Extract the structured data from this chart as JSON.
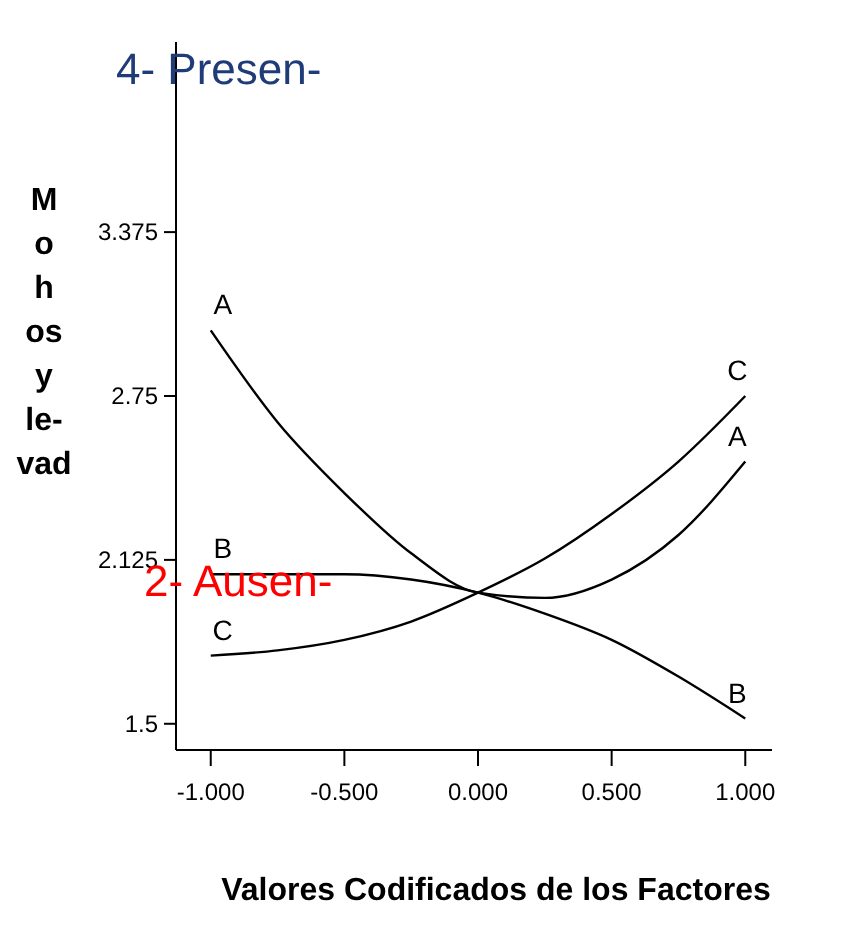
{
  "chart_data": {
    "type": "line",
    "xlabel": "Valores Codificados de los Factores",
    "ylabel": "M\no\nh\nos\ny\nle-\nvad",
    "annotations": [
      "4- Presen-",
      "2- Ausen-"
    ],
    "xlim": [
      -1.13,
      1.1
    ],
    "ylim": [
      1.4,
      4.1
    ],
    "xticks": [
      {
        "value": -1,
        "label": "-1.000"
      },
      {
        "value": -0.5,
        "label": "-0.500"
      },
      {
        "value": 0,
        "label": "0.000"
      },
      {
        "value": 0.5,
        "label": "0.500"
      },
      {
        "value": 1,
        "label": "1.000"
      }
    ],
    "yticks": [
      1.5,
      2.125,
      2.75,
      3.375
    ],
    "x": [
      -1,
      -0.75,
      -0.5,
      -0.25,
      0,
      0.25,
      0.5,
      0.75,
      1
    ],
    "series": [
      {
        "name": "A",
        "color": "#000000",
        "values": [
          3.0,
          2.65,
          2.38,
          2.15,
          2.0,
          1.98,
          2.05,
          2.22,
          2.5
        ]
      },
      {
        "name": "B",
        "color": "#000000",
        "values": [
          2.07,
          2.07,
          2.07,
          2.05,
          2.0,
          1.92,
          1.82,
          1.68,
          1.52
        ]
      },
      {
        "name": "C",
        "color": "#000000",
        "values": [
          1.76,
          1.78,
          1.82,
          1.89,
          2.0,
          2.13,
          2.3,
          2.5,
          2.75
        ]
      }
    ],
    "grid": false,
    "marker": "none",
    "line_style": "solid"
  }
}
